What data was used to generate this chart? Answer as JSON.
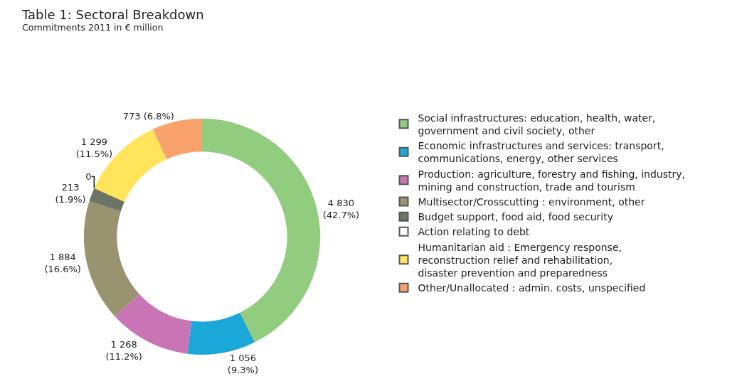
{
  "chart_data": {
    "type": "donut",
    "title": "Table 1: Sectoral Breakdown",
    "subtitle": "Commitments 2011 in € million",
    "categories": [
      "Social infrastructures: education, health, water,\ngovernment and civil society, other",
      "Economic infrastructures and services: transport,\ncommunications, energy, other services",
      "Production: agriculture, forestry and fishing, industry,\nmining and construction, trade and tourism",
      "Multisector/Crosscutting : environment, other",
      "Budget support, food aid, food security",
      "Action relating to debt",
      "Humanitarian aid : Emergency response,\nreconstruction relief and rehabilitation,\ndisaster prevention and preparedness",
      "Other/Unallocated : admin. costs, unspecified"
    ],
    "values": [
      4830,
      1056,
      1268,
      1884,
      213,
      0,
      1299,
      773
    ],
    "colors": [
      "#92cd7f",
      "#1ba7d8",
      "#c874b5",
      "#9a9370",
      "#6b7465",
      "#ffffff",
      "#ffe45c",
      "#f9a26c"
    ],
    "value_labels": [
      "4 830\n(42.7%)",
      "1 056\n(9.3%)",
      "1 268\n(11.2%)",
      "1 884\n(16.6%)",
      "213\n(1.9%)",
      "0",
      "1 299\n(11.5%)",
      "773 (6.8%)"
    ],
    "legend": "right"
  }
}
